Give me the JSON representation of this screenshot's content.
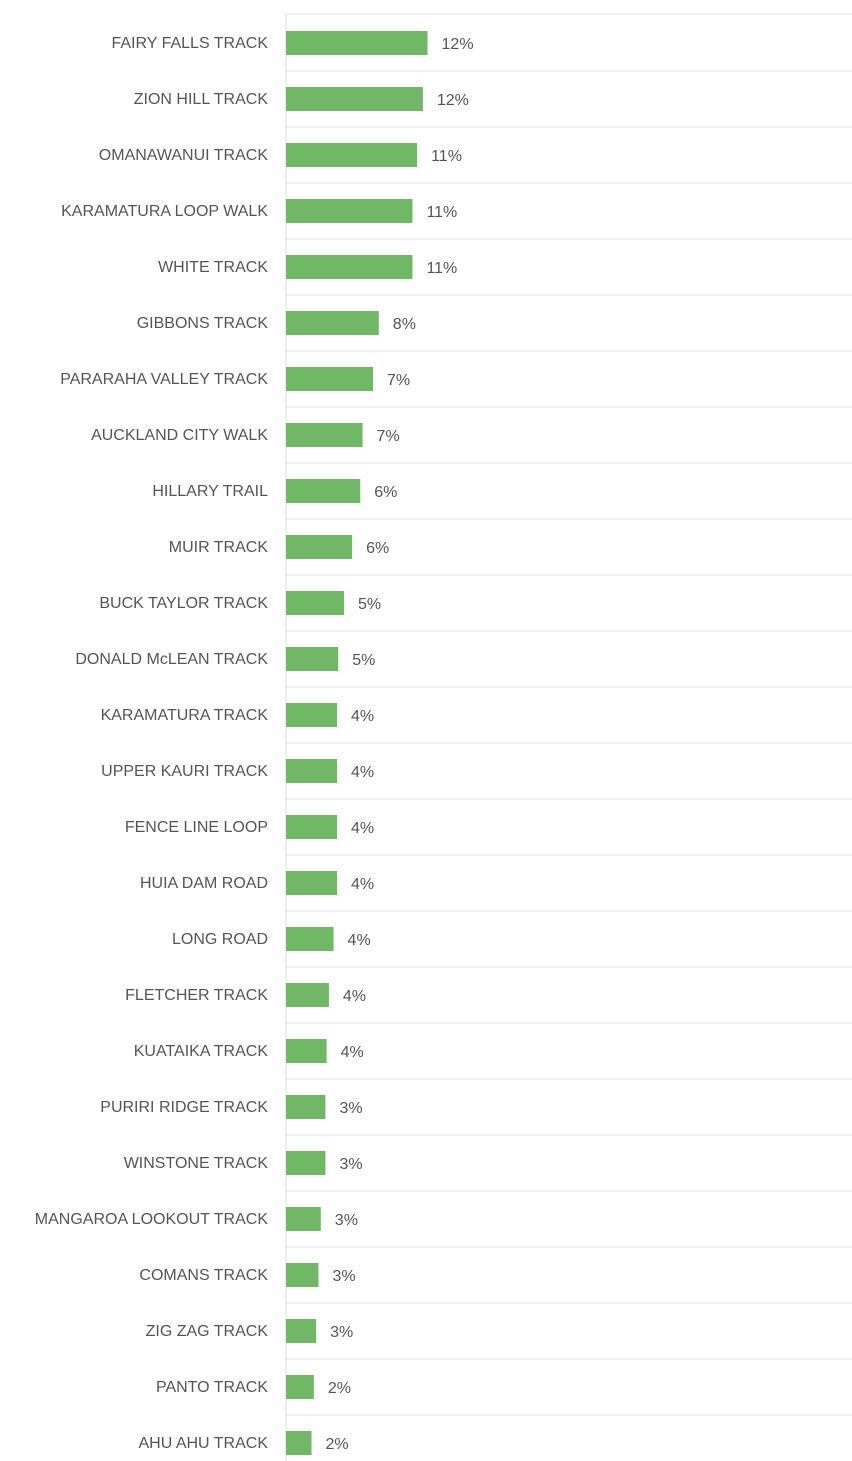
{
  "chart_data": {
    "type": "bar",
    "orientation": "horizontal",
    "title": "",
    "xlabel": "",
    "ylabel": "",
    "grid": true,
    "legend": "none",
    "bar_color": "#70b865",
    "categories": [
      "FAIRY FALLS TRACK",
      "ZION HILL TRACK",
      "OMANAWANUI TRACK",
      "KARAMATURA LOOP WALK",
      "WHITE TRACK",
      "GIBBONS TRACK",
      "PARARAHA VALLEY TRACK",
      "AUCKLAND CITY WALK",
      "HILLARY TRAIL",
      "MUIR TRACK",
      "BUCK TAYLOR TRACK",
      "DONALD McLEAN TRACK",
      "KARAMATURA TRACK",
      "UPPER KAURI TRACK",
      "FENCE LINE LOOP",
      "HUIA DAM ROAD",
      "LONG ROAD",
      "FLETCHER TRACK",
      "KUATAIKA TRACK",
      "PURIRI RIDGE TRACK",
      "WINSTONE TRACK",
      "MANGAROA LOOKOUT TRACK",
      "COMANS TRACK",
      "ZIG ZAG TRACK",
      "PANTO TRACK",
      "AHU AHU TRACK"
    ],
    "values": [
      12.2,
      11.8,
      11.3,
      10.9,
      10.9,
      8.0,
      7.5,
      6.6,
      6.4,
      5.7,
      5.0,
      4.5,
      4.4,
      4.4,
      4.4,
      4.4,
      4.1,
      3.7,
      3.5,
      3.4,
      3.4,
      3.0,
      2.8,
      2.6,
      2.4,
      2.2
    ],
    "value_labels": [
      "12%",
      "12%",
      "11%",
      "11%",
      "11%",
      "8%",
      "7%",
      "7%",
      "6%",
      "6%",
      "5%",
      "5%",
      "4%",
      "4%",
      "4%",
      "4%",
      "4%",
      "4%",
      "4%",
      "3%",
      "3%",
      "3%",
      "3%",
      "3%",
      "2%",
      "2%"
    ]
  }
}
